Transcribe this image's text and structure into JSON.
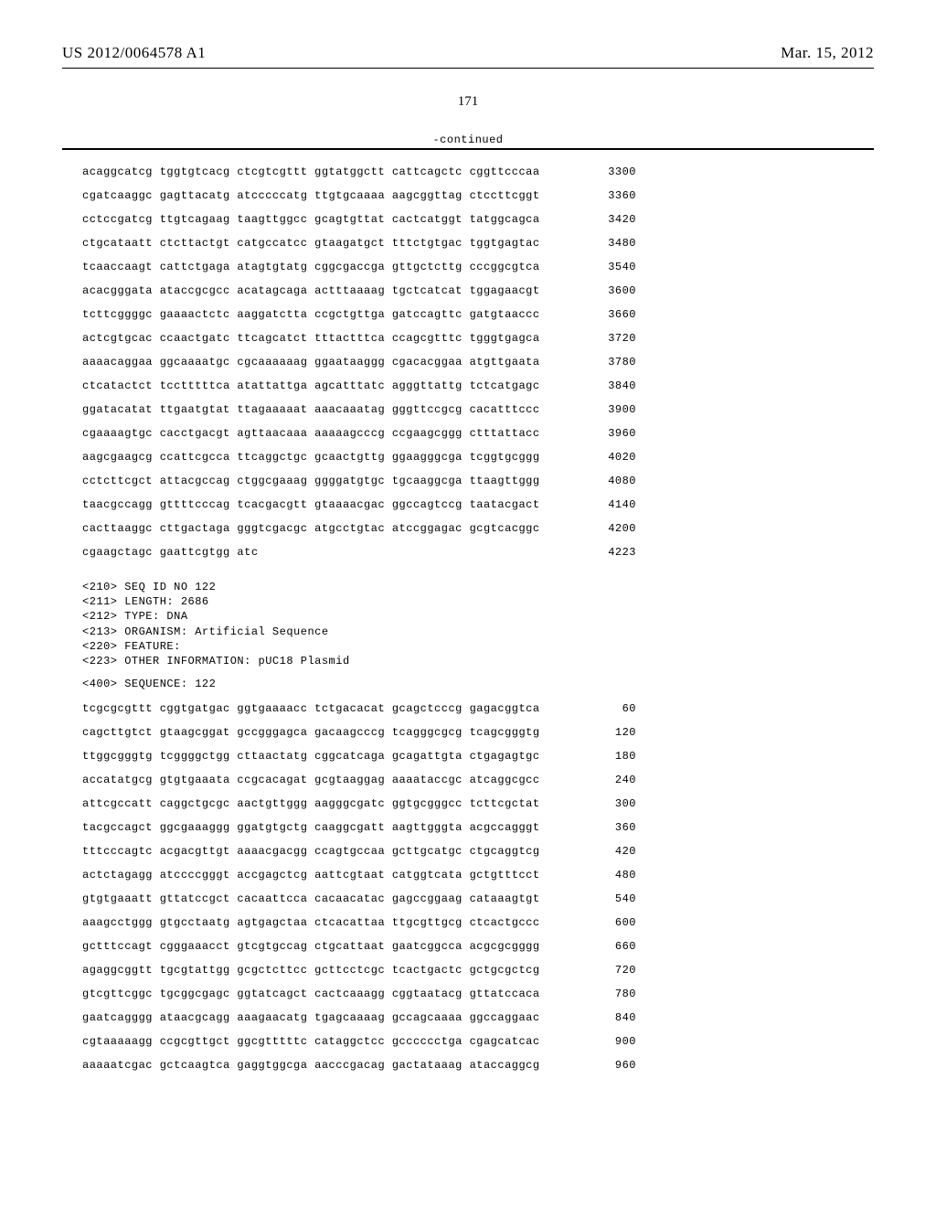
{
  "header": {
    "pub_number": "US 2012/0064578 A1",
    "pub_date": "Mar. 15, 2012"
  },
  "page_number": "171",
  "continued_label": "-continued",
  "sequence_1": {
    "rows": [
      {
        "groups": [
          "acaggcatcg",
          "tggtgtcacg",
          "ctcgtcgttt",
          "ggtatggctt",
          "cattcagctc",
          "cggttcccaa"
        ],
        "pos": "3300"
      },
      {
        "groups": [
          "cgatcaaggc",
          "gagttacatg",
          "atcccccatg",
          "ttgtgcaaaa",
          "aagcggttag",
          "ctccttcggt"
        ],
        "pos": "3360"
      },
      {
        "groups": [
          "cctccgatcg",
          "ttgtcagaag",
          "taagttggcc",
          "gcagtgttat",
          "cactcatggt",
          "tatggcagca"
        ],
        "pos": "3420"
      },
      {
        "groups": [
          "ctgcataatt",
          "ctcttactgt",
          "catgccatcc",
          "gtaagatgct",
          "tttctgtgac",
          "tggtgagtac"
        ],
        "pos": "3480"
      },
      {
        "groups": [
          "tcaaccaagt",
          "cattctgaga",
          "atagtgtatg",
          "cggcgaccga",
          "gttgctcttg",
          "cccggcgtca"
        ],
        "pos": "3540"
      },
      {
        "groups": [
          "acacgggata",
          "ataccgcgcc",
          "acatagcaga",
          "actttaaaag",
          "tgctcatcat",
          "tggagaacgt"
        ],
        "pos": "3600"
      },
      {
        "groups": [
          "tcttcggggc",
          "gaaaactctc",
          "aaggatctta",
          "ccgctgttga",
          "gatccagttc",
          "gatgtaaccc"
        ],
        "pos": "3660"
      },
      {
        "groups": [
          "actcgtgcac",
          "ccaactgatc",
          "ttcagcatct",
          "tttactttca",
          "ccagcgtttc",
          "tgggtgagca"
        ],
        "pos": "3720"
      },
      {
        "groups": [
          "aaaacaggaa",
          "ggcaaaatgc",
          "cgcaaaaaag",
          "ggaataaggg",
          "cgacacggaa",
          "atgttgaata"
        ],
        "pos": "3780"
      },
      {
        "groups": [
          "ctcatactct",
          "tcctttttca",
          "atattattga",
          "agcatttatc",
          "agggttattg",
          "tctcatgagc"
        ],
        "pos": "3840"
      },
      {
        "groups": [
          "ggatacatat",
          "ttgaatgtat",
          "ttagaaaaat",
          "aaacaaatag",
          "gggttccgcg",
          "cacatttccc"
        ],
        "pos": "3900"
      },
      {
        "groups": [
          "cgaaaagtgc",
          "cacctgacgt",
          "agttaacaaa",
          "aaaaagcccg",
          "ccgaagcggg",
          "ctttattacc"
        ],
        "pos": "3960"
      },
      {
        "groups": [
          "aagcgaagcg",
          "ccattcgcca",
          "ttcaggctgc",
          "gcaactgttg",
          "ggaagggcga",
          "tcggtgcggg"
        ],
        "pos": "4020"
      },
      {
        "groups": [
          "cctcttcgct",
          "attacgccag",
          "ctggcgaaag",
          "ggggatgtgc",
          "tgcaaggcga",
          "ttaagttggg"
        ],
        "pos": "4080"
      },
      {
        "groups": [
          "taacgccagg",
          "gttttcccag",
          "tcacgacgtt",
          "gtaaaacgac",
          "ggccagtccg",
          "taatacgact"
        ],
        "pos": "4140"
      },
      {
        "groups": [
          "cacttaaggc",
          "cttgactaga",
          "gggtcgacgc",
          "atgcctgtac",
          "atccggagac",
          "gcgtcacggc"
        ],
        "pos": "4200"
      },
      {
        "groups": [
          "cgaagctagc",
          "gaattcgtgg",
          "atc"
        ],
        "pos": "4223"
      }
    ]
  },
  "meta": {
    "lines": [
      "<210> SEQ ID NO 122",
      "<211> LENGTH: 2686",
      "<212> TYPE: DNA",
      "<213> ORGANISM: Artificial Sequence",
      "<220> FEATURE:",
      "<223> OTHER INFORMATION: pUC18 Plasmid"
    ]
  },
  "sequence_label": "<400> SEQUENCE: 122",
  "sequence_2": {
    "rows": [
      {
        "groups": [
          "tcgcgcgttt",
          "cggtgatgac",
          "ggtgaaaacc",
          "tctgacacat",
          "gcagctcccg",
          "gagacggtca"
        ],
        "pos": "60"
      },
      {
        "groups": [
          "cagcttgtct",
          "gtaagcggat",
          "gccgggagca",
          "gacaagcccg",
          "tcagggcgcg",
          "tcagcgggtg"
        ],
        "pos": "120"
      },
      {
        "groups": [
          "ttggcgggtg",
          "tcggggctgg",
          "cttaactatg",
          "cggcatcaga",
          "gcagattgta",
          "ctgagagtgc"
        ],
        "pos": "180"
      },
      {
        "groups": [
          "accatatgcg",
          "gtgtgaaata",
          "ccgcacagat",
          "gcgtaaggag",
          "aaaataccgc",
          "atcaggcgcc"
        ],
        "pos": "240"
      },
      {
        "groups": [
          "attcgccatt",
          "caggctgcgc",
          "aactgttggg",
          "aagggcgatc",
          "ggtgcgggcc",
          "tcttcgctat"
        ],
        "pos": "300"
      },
      {
        "groups": [
          "tacgccagct",
          "ggcgaaaggg",
          "ggatgtgctg",
          "caaggcgatt",
          "aagttgggta",
          "acgccagggt"
        ],
        "pos": "360"
      },
      {
        "groups": [
          "tttcccagtc",
          "acgacgttgt",
          "aaaacgacgg",
          "ccagtgccaa",
          "gcttgcatgc",
          "ctgcaggtcg"
        ],
        "pos": "420"
      },
      {
        "groups": [
          "actctagagg",
          "atccccgggt",
          "accgagctcg",
          "aattcgtaat",
          "catggtcata",
          "gctgtttcct"
        ],
        "pos": "480"
      },
      {
        "groups": [
          "gtgtgaaatt",
          "gttatccgct",
          "cacaattcca",
          "cacaacatac",
          "gagccggaag",
          "cataaagtgt"
        ],
        "pos": "540"
      },
      {
        "groups": [
          "aaagcctggg",
          "gtgcctaatg",
          "agtgagctaa",
          "ctcacattaa",
          "ttgcgttgcg",
          "ctcactgccc"
        ],
        "pos": "600"
      },
      {
        "groups": [
          "gctttccagt",
          "cgggaaacct",
          "gtcgtgccag",
          "ctgcattaat",
          "gaatcggcca",
          "acgcgcgggg"
        ],
        "pos": "660"
      },
      {
        "groups": [
          "agaggcggtt",
          "tgcgtattgg",
          "gcgctcttcc",
          "gcttcctcgc",
          "tcactgactc",
          "gctgcgctcg"
        ],
        "pos": "720"
      },
      {
        "groups": [
          "gtcgttcggc",
          "tgcggcgagc",
          "ggtatcagct",
          "cactcaaagg",
          "cggtaatacg",
          "gttatccaca"
        ],
        "pos": "780"
      },
      {
        "groups": [
          "gaatcagggg",
          "ataacgcagg",
          "aaagaacatg",
          "tgagcaaaag",
          "gccagcaaaa",
          "ggccaggaac"
        ],
        "pos": "840"
      },
      {
        "groups": [
          "cgtaaaaagg",
          "ccgcgttgct",
          "ggcgtttttc",
          "cataggctcc",
          "gcccccctga",
          "cgagcatcac"
        ],
        "pos": "900"
      },
      {
        "groups": [
          "aaaaatcgac",
          "gctcaagtca",
          "gaggtggcga",
          "aacccgacag",
          "gactataaag",
          "ataccaggcg"
        ],
        "pos": "960"
      }
    ]
  },
  "style": {
    "font_mono": "Courier New",
    "font_serif": "Times New Roman",
    "text_color": "#000000",
    "background_color": "#ffffff",
    "header_fontsize": 17,
    "page_number_fontsize": 15,
    "mono_fontsize": 12,
    "group_gap": " "
  }
}
